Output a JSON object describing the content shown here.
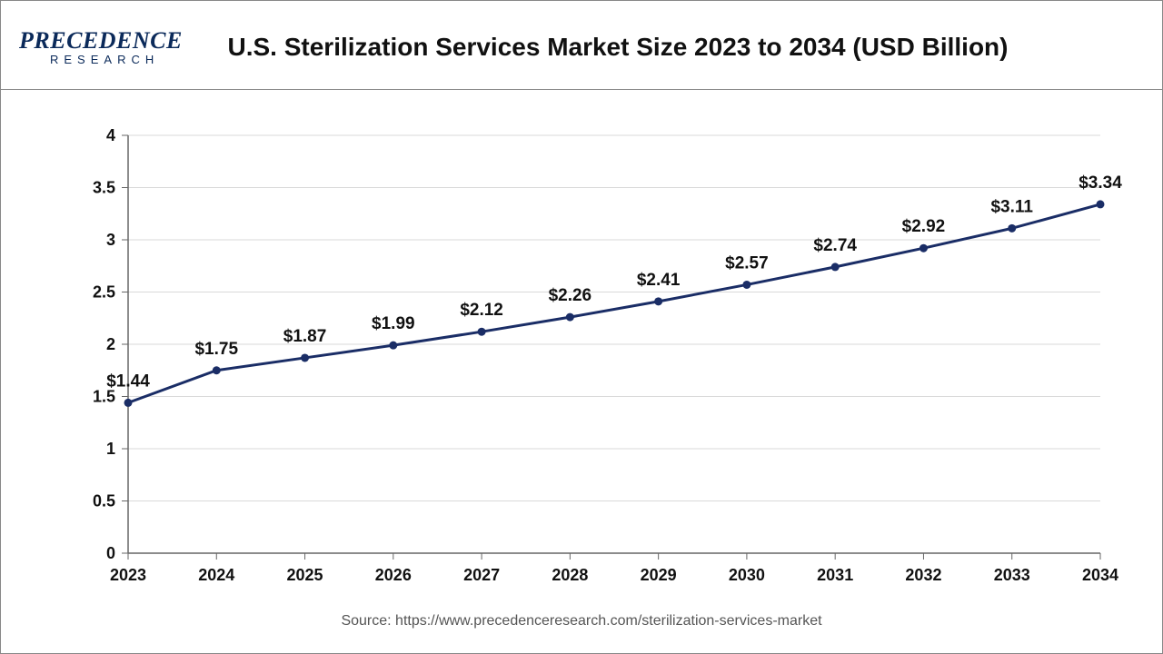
{
  "header": {
    "logo_main": "PRECEDENCE",
    "logo_sub": "RESEARCH",
    "title": "U.S. Sterilization Services Market Size 2023 to 2034 (USD Billion)"
  },
  "chart": {
    "type": "line",
    "x_labels": [
      "2023",
      "2024",
      "2025",
      "2026",
      "2027",
      "2028",
      "2029",
      "2030",
      "2031",
      "2032",
      "2033",
      "2034"
    ],
    "values": [
      1.44,
      1.75,
      1.87,
      1.99,
      2.12,
      2.26,
      2.41,
      2.57,
      2.74,
      2.92,
      3.11,
      3.34
    ],
    "value_labels": [
      "$1.44",
      "$1.75",
      "$1.87",
      "$1.99",
      "$2.12",
      "$2.26",
      "$2.41",
      "$2.57",
      "$2.74",
      "$2.92",
      "$3.11",
      "$3.34"
    ],
    "ylim": [
      0,
      4
    ],
    "ytick_step": 0.5,
    "y_ticks": [
      "0",
      "0.5",
      "1",
      "1.5",
      "2",
      "2.5",
      "3",
      "3.5",
      "4"
    ],
    "line_color": "#1a2d66",
    "line_width": 3,
    "marker_color": "#1a2d66",
    "marker_radius": 4.5,
    "grid_color": "#d9d9d9",
    "axis_color": "#666666",
    "background_color": "#ffffff",
    "title_fontsize": 28,
    "axis_fontsize": 18,
    "datalabel_fontsize": 19
  },
  "footer": {
    "source": "Source: https://www.precedenceresearch.com/sterilization-services-market"
  }
}
